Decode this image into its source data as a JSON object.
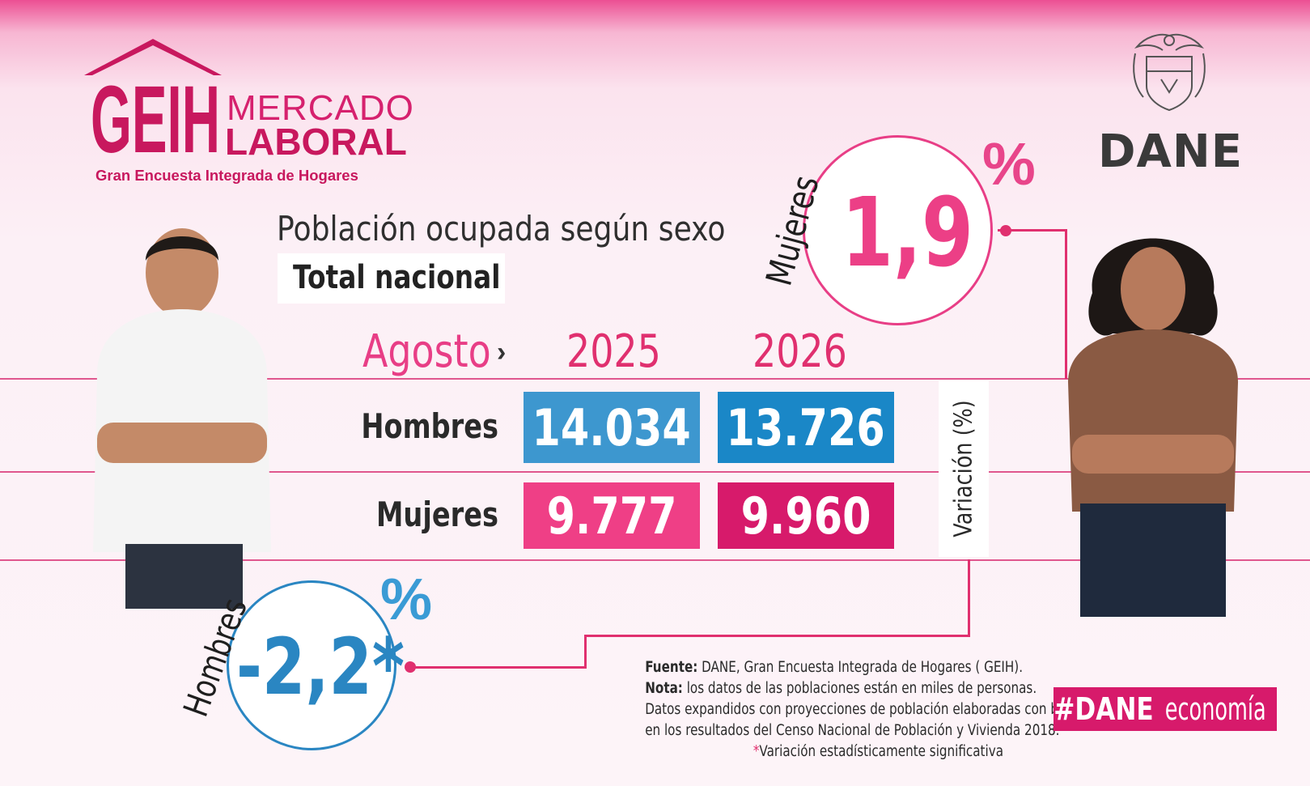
{
  "logo": {
    "geih": "GEIH",
    "mercado": "MERCADO",
    "laboral": "LABORAL",
    "subtitle": "Gran Encuesta Integrada de Hogares"
  },
  "agency": {
    "name": "DANE"
  },
  "heading": {
    "title": "Población ocupada según sexo",
    "scope": "Total nacional"
  },
  "table": {
    "period_label": "Agosto",
    "years": [
      "2025",
      "2026"
    ],
    "rows": [
      {
        "label": "Hombres",
        "values": [
          "14.034",
          "13.726"
        ]
      },
      {
        "label": "Mujeres",
        "values": [
          "9.777",
          "9.960"
        ]
      }
    ],
    "variation_label": "Variación (%)"
  },
  "variation": {
    "women": {
      "label": "Mujeres",
      "value": "1,9",
      "unit": "%"
    },
    "men": {
      "label": "Hombres",
      "value": "-2,2*",
      "unit": "%"
    }
  },
  "notes": {
    "source_label": "Fuente:",
    "source_text": " DANE, Gran Encuesta Integrada de Hogares ( GEIH).",
    "note_label": "Nota:",
    "note_text": " los datos de las poblaciones están en miles de personas.",
    "line3": "Datos expandidos con proyecciones de población elaboradas con base",
    "line4": "en los resultados del Censo Nacional de Población y Vivienda 2018.",
    "asterisk": "*",
    "significance": "Variación estadísticamente significativa"
  },
  "hashtag": {
    "bold": "#DANE",
    "rest": "economía"
  },
  "colors": {
    "pink": "#e83e86",
    "magenta": "#d71a6b",
    "blue": "#2a86c2",
    "light_blue": "#3d97cf"
  }
}
